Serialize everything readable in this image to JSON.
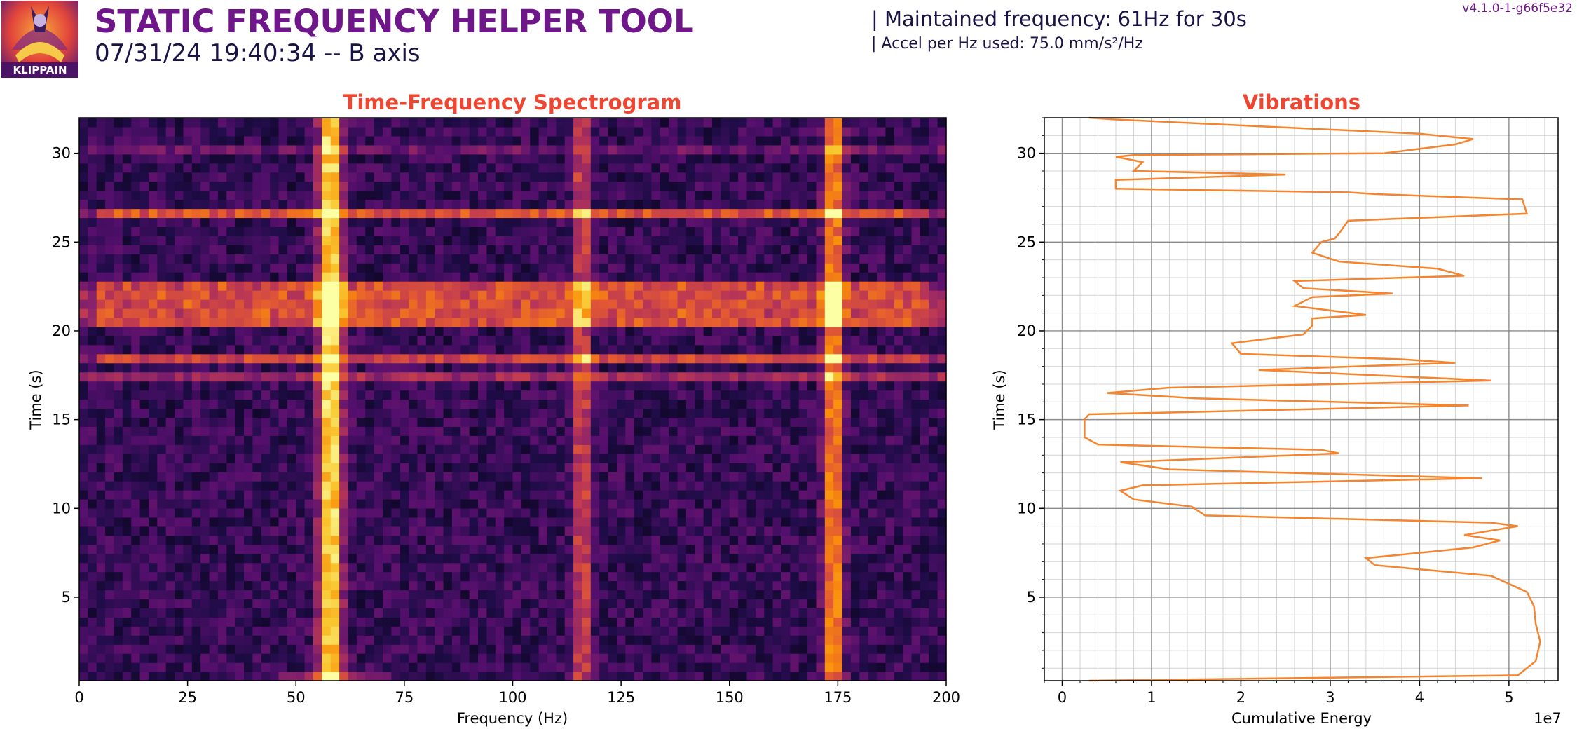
{
  "header": {
    "title": "STATIC FREQUENCY HELPER TOOL",
    "subtitle": "07/31/24 19:40:34 -- B axis",
    "info_frequency": "| Maintained frequency: 61Hz for 30s",
    "info_accel": "| Accel per Hz used: 75.0 mm/s²/Hz",
    "version": "v4.1.0-1-g66f5e32",
    "logo_text": "KLIPPAIN"
  },
  "colors": {
    "title": "#70168b",
    "plot_title": "#ef4632",
    "line": "#f4852e",
    "text": "#1a1346"
  },
  "chart_data": [
    {
      "type": "heatmap",
      "title": "Time-Frequency Spectrogram",
      "xlabel": "Frequency (Hz)",
      "ylabel": "Time (s)",
      "xlim": [
        0,
        200
      ],
      "ylim": [
        0.3,
        32
      ],
      "xticks": [
        0,
        25,
        50,
        75,
        100,
        125,
        150,
        175,
        200
      ],
      "yticks": [
        5,
        10,
        15,
        20,
        25,
        30
      ],
      "colormap": "inferno",
      "frequency_peaks_hz": [
        58,
        116,
        174
      ],
      "high_energy_time_bands_s": [
        [
          20,
          23
        ],
        [
          18,
          18.7
        ],
        [
          26.4,
          26.9
        ]
      ]
    },
    {
      "type": "line",
      "title": "Vibrations",
      "xlabel": "Cumulative Energy",
      "ylabel": "Time (s)",
      "x_scale_label": "1e7",
      "xlim": [
        -0.2,
        5.55
      ],
      "ylim": [
        0.3,
        32
      ],
      "xticks": [
        0,
        1,
        2,
        3,
        4,
        5
      ],
      "yticks": [
        5,
        10,
        15,
        20,
        25,
        30
      ],
      "grid": true,
      "points": [
        [
          0.3,
          0.3
        ],
        [
          5.1,
          0.6
        ],
        [
          5.3,
          1.4
        ],
        [
          5.35,
          2.5
        ],
        [
          5.3,
          3.5
        ],
        [
          5.28,
          4.5
        ],
        [
          5.2,
          5.3
        ],
        [
          4.8,
          6.2
        ],
        [
          3.5,
          6.8
        ],
        [
          3.4,
          7.2
        ],
        [
          4.6,
          7.8
        ],
        [
          4.9,
          8.2
        ],
        [
          4.5,
          8.5
        ],
        [
          5.1,
          9.0
        ],
        [
          4.8,
          9.2
        ],
        [
          1.6,
          9.6
        ],
        [
          1.45,
          10.1
        ],
        [
          0.8,
          10.5
        ],
        [
          0.65,
          11.0
        ],
        [
          0.9,
          11.3
        ],
        [
          4.7,
          11.7
        ],
        [
          1.2,
          12.2
        ],
        [
          0.65,
          12.6
        ],
        [
          3.1,
          13.1
        ],
        [
          2.9,
          13.3
        ],
        [
          1.2,
          13.5
        ],
        [
          0.4,
          13.6
        ],
        [
          0.25,
          14.0
        ],
        [
          0.25,
          15.0
        ],
        [
          0.3,
          15.3
        ],
        [
          1.2,
          15.4
        ],
        [
          4.55,
          15.8
        ],
        [
          1.5,
          16.2
        ],
        [
          0.5,
          16.5
        ],
        [
          1.2,
          16.8
        ],
        [
          4.8,
          17.2
        ],
        [
          2.2,
          17.8
        ],
        [
          4.4,
          18.2
        ],
        [
          3.8,
          18.4
        ],
        [
          2.0,
          18.7
        ],
        [
          1.9,
          19.3
        ],
        [
          2.7,
          19.8
        ],
        [
          2.8,
          20.3
        ],
        [
          2.8,
          20.7
        ],
        [
          3.4,
          20.9
        ],
        [
          2.6,
          21.4
        ],
        [
          2.8,
          21.9
        ],
        [
          3.7,
          22.1
        ],
        [
          2.7,
          22.4
        ],
        [
          2.6,
          22.8
        ],
        [
          4.5,
          23.1
        ],
        [
          4.2,
          23.5
        ],
        [
          3.1,
          23.9
        ],
        [
          2.8,
          24.4
        ],
        [
          2.9,
          25.0
        ],
        [
          3.05,
          25.2
        ],
        [
          3.1,
          25.5
        ],
        [
          3.2,
          26.2
        ],
        [
          5.2,
          26.6
        ],
        [
          5.15,
          27.4
        ],
        [
          3.5,
          27.7
        ],
        [
          3.2,
          27.8
        ],
        [
          0.6,
          28.0
        ],
        [
          0.6,
          28.5
        ],
        [
          2.5,
          28.8
        ],
        [
          0.8,
          29.0
        ],
        [
          0.9,
          29.5
        ],
        [
          0.6,
          29.8
        ],
        [
          0.8,
          29.9
        ],
        [
          3.6,
          30.0
        ],
        [
          4.4,
          30.5
        ],
        [
          4.6,
          30.8
        ],
        [
          4.0,
          31.1
        ],
        [
          0.6,
          31.9
        ],
        [
          0.3,
          32.0
        ]
      ]
    }
  ]
}
